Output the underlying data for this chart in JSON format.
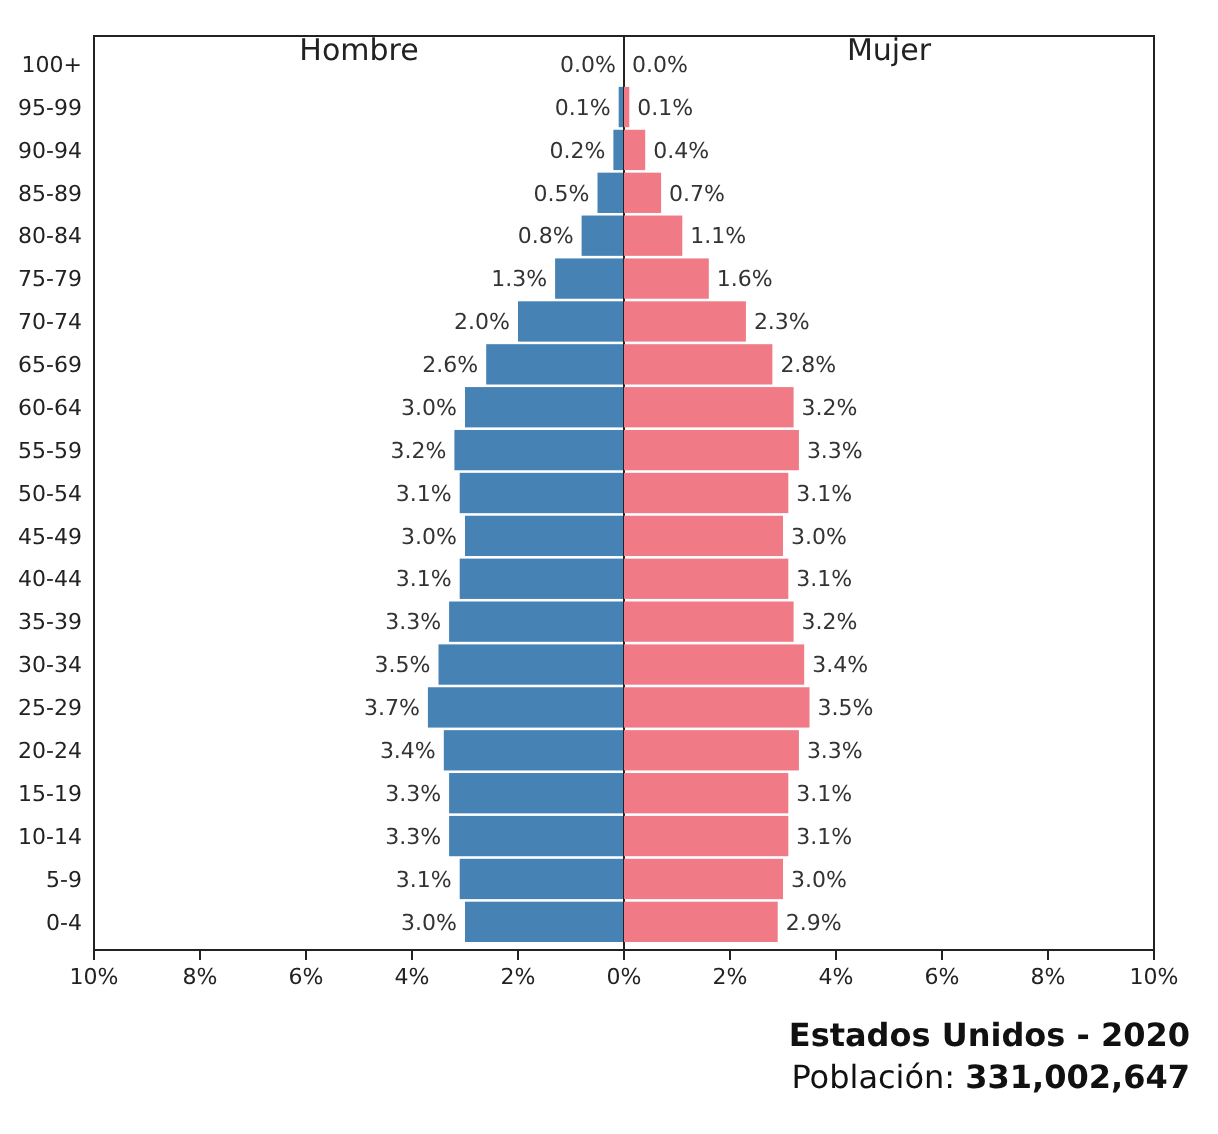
{
  "chart_data": [
    {
      "type": "bar",
      "orientation": "horizontal",
      "title": "Hombre",
      "tick_labels": "xy",
      "categories": [
        "100+",
        "95-99",
        "90-94",
        "85-89",
        "80-84",
        "75-79",
        "70-74",
        "65-69",
        "60-64",
        "55-59",
        "50-54",
        "45-49",
        "40-44",
        "35-39",
        "30-34",
        "25-29",
        "20-24",
        "15-19",
        "10-14",
        "5-9",
        "0-4"
      ],
      "series": [
        {
          "color": "#4682b4",
          "values": [
            0.0,
            0.1,
            0.2,
            0.5,
            0.8,
            1.3,
            2.0,
            2.6,
            3.0,
            3.2,
            3.1,
            3.0,
            3.1,
            3.3,
            3.5,
            3.7,
            3.4,
            3.3,
            3.3,
            3.1,
            3.0
          ],
          "value_labels": [
            "0.0%",
            "0.1%",
            "0.2%",
            "0.5%",
            "0.8%",
            "1.3%",
            "2.0%",
            "2.6%",
            "3.0%",
            "3.2%",
            "3.1%",
            "3.0%",
            "3.1%",
            "3.3%",
            "3.5%",
            "3.7%",
            "3.4%",
            "3.3%",
            "3.3%",
            "3.1%",
            "3.0%"
          ]
        }
      ],
      "xlim": [
        10,
        0
      ],
      "xticks": [
        {
          "value": 10,
          "label": "10%"
        },
        {
          "value": 8,
          "label": "8%"
        },
        {
          "value": 6,
          "label": "6%"
        },
        {
          "value": 4,
          "label": "4%"
        },
        {
          "value": 2,
          "label": "2%"
        },
        {
          "value": 0,
          "label": "0%"
        }
      ]
    },
    {
      "type": "bar",
      "orientation": "horizontal",
      "title": "Mujer",
      "tick_labels": "x",
      "categories": [
        null,
        null,
        null,
        null,
        null,
        null,
        null,
        null,
        null,
        null,
        null,
        null,
        null,
        null,
        null,
        null,
        null,
        null,
        null,
        null,
        null
      ],
      "series": [
        {
          "color": "#f07b87",
          "values": [
            0.0,
            0.1,
            0.4,
            0.7,
            1.1,
            1.6,
            2.3,
            2.8,
            3.2,
            3.3,
            3.1,
            3.0,
            3.1,
            3.2,
            3.4,
            3.5,
            3.3,
            3.1,
            3.1,
            3.0,
            2.9
          ],
          "value_labels": [
            "0.0%",
            "0.1%",
            "0.4%",
            "0.7%",
            "1.1%",
            "1.6%",
            "2.3%",
            "2.8%",
            "3.2%",
            "3.3%",
            "3.1%",
            "3.0%",
            "3.1%",
            "3.2%",
            "3.4%",
            "3.5%",
            "3.3%",
            "3.1%",
            "3.1%",
            "3.0%",
            "2.9%"
          ]
        }
      ],
      "xlim": [
        0,
        10
      ],
      "xticks": [
        {
          "value": 0,
          "label": null
        },
        {
          "value": 2,
          "label": "2%"
        },
        {
          "value": 4,
          "label": "4%"
        },
        {
          "value": 6,
          "label": "6%"
        },
        {
          "value": 8,
          "label": "8%"
        },
        {
          "value": 10,
          "label": "10%"
        }
      ],
      "annotations": [
        "Estados Unidos - 2020",
        "Población: 331,002,647"
      ]
    }
  ]
}
